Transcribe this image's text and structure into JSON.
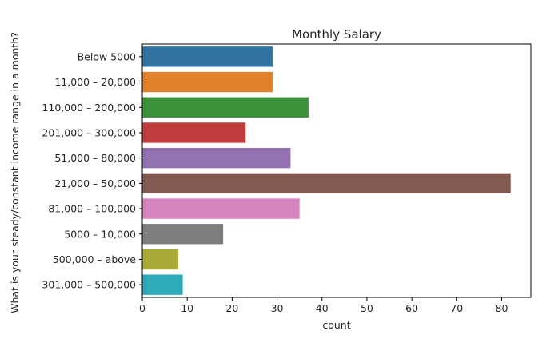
{
  "chart_data": {
    "type": "bar",
    "orientation": "horizontal",
    "title": "Monthly Salary",
    "xlabel": "count",
    "ylabel": "What is your steady/constant income range in a month?",
    "categories": [
      "Below 5000",
      "11,000 – 20,000",
      "110,000 – 200,000",
      "201,000 – 300,000",
      "51,000 – 80,000",
      "21,000 – 50,000",
      "81,000 – 100,000",
      "5000 – 10,000",
      "500,000 – above",
      "301,000 – 500,000"
    ],
    "values": [
      29,
      29,
      37,
      23,
      33,
      82,
      35,
      18,
      8,
      9
    ],
    "colors": [
      "#3274a1",
      "#e1812c",
      "#3a923a",
      "#c03d3e",
      "#9372b2",
      "#845b53",
      "#d684bd",
      "#7f7f7f",
      "#a9aa35",
      "#2eabb8"
    ],
    "xlim": [
      0,
      86.5
    ],
    "xticks": [
      0,
      10,
      20,
      30,
      40,
      50,
      60,
      70,
      80
    ],
    "grid": false,
    "legend": "none"
  }
}
